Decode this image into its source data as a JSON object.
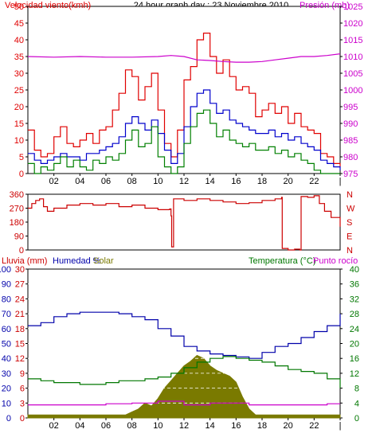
{
  "title": "24 hour graph day : 23 Noviembre 2010",
  "colors": {
    "wind": "#e00000",
    "gust": "#e00000",
    "wind_avg": "#0000cc",
    "wind_low": "#008000",
    "pressure": "#cc00cc",
    "direction": "#cc0000",
    "humidity": "#0000aa",
    "temperature": "#007700",
    "dewpoint": "#cc00cc",
    "solar": "#7a7a00",
    "rain": "#cc0000",
    "grid": "#ffffff",
    "plot_bg": "#ffffff"
  },
  "chart_data": [
    {
      "type": "line",
      "title": "24 hour graph day : 23 Noviembre 2010",
      "x_ticks": [
        "02",
        "04",
        "06",
        "08",
        "10",
        "12",
        "14",
        "16",
        "18",
        "20",
        "22",
        "|"
      ],
      "x_range_hours": [
        0,
        24
      ],
      "left_axis": {
        "label": "Velocidad viento(kmh)",
        "range": [
          0,
          50
        ],
        "ticks": [
          "0",
          "5",
          "10",
          "15",
          "20",
          "25",
          "30",
          "35",
          "40",
          "45",
          "50"
        ]
      },
      "right_axis": {
        "label": "Presión (mb)",
        "range": [
          975,
          1025
        ],
        "ticks": [
          "975",
          "980",
          "985",
          "990",
          "995",
          "1000",
          "1005",
          "1010",
          "1015",
          "1020",
          "1025"
        ]
      },
      "series": [
        {
          "key": "gust",
          "axis": "left",
          "x": [
            0,
            0.5,
            1,
            1.5,
            2,
            2.5,
            3,
            3.5,
            4,
            4.5,
            5,
            5.5,
            6,
            6.5,
            7,
            7.5,
            8,
            8.5,
            9,
            9.5,
            10,
            10.5,
            11,
            11.5,
            12,
            12.5,
            13,
            13.5,
            14,
            14.5,
            15,
            15.5,
            16,
            16.5,
            17,
            17.5,
            18,
            18.5,
            19,
            19.5,
            20,
            20.5,
            21,
            21.5,
            22,
            22.5,
            23,
            23.5,
            24
          ],
          "values": [
            13,
            7,
            5,
            6,
            11,
            14,
            9,
            8,
            10,
            12,
            9,
            13,
            14,
            19,
            24,
            31,
            29,
            22,
            26,
            30,
            19,
            9,
            5,
            13,
            28,
            32,
            40,
            42,
            35,
            30,
            34,
            29,
            25,
            26,
            24,
            17,
            19,
            21,
            18,
            20,
            15,
            18,
            14,
            13,
            12,
            6,
            5,
            3,
            2
          ]
        },
        {
          "key": "wind_avg",
          "axis": "left",
          "x": [
            0,
            0.5,
            1,
            1.5,
            2,
            2.5,
            3,
            3.5,
            4,
            4.5,
            5,
            5.5,
            6,
            6.5,
            7,
            7.5,
            8,
            8.5,
            9,
            9.5,
            10,
            10.5,
            11,
            11.5,
            12,
            12.5,
            13,
            13.5,
            14,
            14.5,
            15,
            15.5,
            16,
            16.5,
            17,
            17.5,
            18,
            18.5,
            19,
            19.5,
            20,
            20.5,
            21,
            21.5,
            22,
            22.5,
            23,
            23.5,
            24
          ],
          "values": [
            6,
            4,
            3,
            4,
            5,
            6,
            5,
            5,
            4,
            6,
            6,
            7,
            8,
            9,
            11,
            15,
            17,
            15,
            13,
            16,
            12,
            7,
            3,
            6,
            14,
            20,
            24,
            25,
            21,
            18,
            19,
            16,
            15,
            14,
            13,
            12,
            12,
            13,
            11,
            12,
            10,
            11,
            9,
            8,
            7,
            4,
            3,
            2,
            1
          ]
        },
        {
          "key": "wind_low",
          "axis": "left",
          "x": [
            0,
            0.5,
            1,
            1.5,
            2,
            2.5,
            3,
            3.5,
            4,
            4.5,
            5,
            5.5,
            6,
            6.5,
            7,
            7.5,
            8,
            8.5,
            9,
            9.5,
            10,
            10.5,
            11,
            11.5,
            12,
            12.5,
            13,
            13.5,
            14,
            14.5,
            15,
            15.5,
            16,
            16.5,
            17,
            17.5,
            18,
            18.5,
            19,
            19.5,
            20,
            20.5,
            21,
            21.5,
            22,
            22.5,
            23,
            23.5,
            24
          ],
          "values": [
            3,
            0,
            2,
            1,
            3,
            5,
            2,
            4,
            2,
            1,
            4,
            3,
            5,
            4,
            6,
            10,
            13,
            8,
            9,
            14,
            5,
            2,
            0,
            2,
            9,
            14,
            18,
            19,
            15,
            11,
            13,
            10,
            9,
            8,
            9,
            7,
            7,
            8,
            6,
            7,
            5,
            6,
            4,
            3,
            1,
            0,
            0,
            0,
            0
          ]
        },
        {
          "key": "pressure",
          "axis": "right",
          "x": [
            0,
            2,
            4,
            6,
            8,
            10,
            11,
            12,
            13,
            14,
            15,
            16,
            17,
            18,
            19,
            20,
            21,
            22,
            23,
            24
          ],
          "values": [
            1010,
            1009.8,
            1010,
            1009.8,
            1009.8,
            1010,
            1010.3,
            1010,
            1009,
            1008.8,
            1008.5,
            1008.3,
            1008.3,
            1008.5,
            1009,
            1009.5,
            1010,
            1010,
            1010.3,
            1010.8
          ]
        }
      ]
    },
    {
      "type": "line",
      "left_axis": {
        "label": "",
        "range": [
          0,
          360
        ],
        "ticks": [
          "0",
          "90",
          "180",
          "270",
          "360"
        ]
      },
      "right_axis": {
        "label": "",
        "ticks": [
          "N",
          "E",
          "S",
          "W",
          "N"
        ]
      },
      "series": [
        {
          "key": "direction",
          "axis": "left",
          "x": [
            0,
            0.3,
            0.6,
            0.9,
            1.2,
            1.5,
            2,
            3,
            4,
            5,
            6,
            7,
            8,
            9,
            10,
            10.9,
            11.0,
            11.05,
            11.2,
            12,
            13,
            14,
            15,
            16,
            17,
            18,
            19,
            19.5,
            19.55,
            20,
            20.5,
            20.9,
            21.0,
            21.5,
            22,
            22.4,
            22.8,
            23.3,
            24
          ],
          "values": [
            270,
            300,
            320,
            330,
            280,
            250,
            270,
            290,
            300,
            290,
            300,
            280,
            290,
            270,
            260,
            265,
            220,
            20,
            330,
            320,
            330,
            320,
            310,
            300,
            305,
            320,
            330,
            340,
            10,
            0,
            5,
            0,
            345,
            340,
            350,
            300,
            250,
            210,
            150
          ]
        }
      ]
    },
    {
      "type": "line",
      "x_ticks": [
        "02",
        "04",
        "06",
        "08",
        "10",
        "12",
        "14",
        "16",
        "18",
        "20",
        "22",
        "|"
      ],
      "x_range_hours": [
        0,
        24
      ],
      "labels_top": [
        "Lluvia (mm)",
        "Humedad %",
        "Solar",
        "Temperatura (°C)",
        "Punto rocío"
      ],
      "left_axis_1": {
        "label": "Lluvia (mm)",
        "range": [
          0,
          100
        ],
        "ticks": [
          "0",
          "10",
          "20",
          "30",
          "40",
          "50",
          "60",
          "70",
          "80",
          "90",
          "100"
        ]
      },
      "left_axis_2": {
        "label": "Humedad %",
        "range": [
          0,
          30
        ],
        "ticks": [
          "0",
          "3",
          "6",
          "9",
          "12",
          "15",
          "18",
          "21",
          "24",
          "27",
          "30"
        ]
      },
      "right_axis": {
        "label": "Temperatura (°C)",
        "range": [
          0,
          40
        ],
        "ticks": [
          "0",
          "4",
          "8",
          "12",
          "16",
          "20",
          "24",
          "28",
          "32",
          "36",
          "40"
        ]
      },
      "series": [
        {
          "key": "humidity",
          "axis": "left_1",
          "x": [
            0,
            1,
            2,
            3,
            4,
            5,
            6,
            7,
            8,
            9,
            10,
            11,
            12,
            13,
            14,
            15,
            16,
            17,
            18,
            19,
            20,
            21,
            22,
            23,
            24
          ],
          "values": [
            62,
            64,
            68,
            70,
            71,
            71,
            71,
            70,
            68,
            66,
            60,
            55,
            48,
            45,
            43,
            42,
            41,
            40,
            44,
            48,
            50,
            54,
            58,
            62,
            70
          ]
        },
        {
          "key": "temperature",
          "axis": "right",
          "x": [
            0,
            1,
            2,
            3,
            4,
            5,
            6,
            7,
            8,
            9,
            10,
            11,
            12,
            13,
            14,
            15,
            16,
            17,
            18,
            19,
            20,
            21,
            22,
            23,
            24
          ],
          "values": [
            10.5,
            10,
            9.5,
            9.5,
            9,
            9,
            9.5,
            10,
            10,
            10.5,
            11,
            12,
            13.5,
            15,
            16,
            16.5,
            16,
            15.5,
            15,
            14,
            13,
            12.5,
            12,
            10.5,
            8
          ]
        },
        {
          "key": "dewpoint",
          "axis": "right",
          "x": [
            0,
            1,
            2,
            3,
            4,
            5,
            6,
            7,
            8,
            9,
            10,
            11,
            12,
            13,
            14,
            15,
            16,
            17,
            18,
            19,
            20,
            21,
            22,
            23,
            24
          ],
          "values": [
            3.5,
            3.5,
            3.5,
            3.5,
            3.5,
            3.5,
            3.8,
            3.8,
            4,
            4,
            4.5,
            4.5,
            3.5,
            3.5,
            4,
            4,
            4,
            3.5,
            3.5,
            3.5,
            3.5,
            3.5,
            3.5,
            3.8,
            3.8
          ]
        },
        {
          "key": "solar",
          "axis": "left_1",
          "x": [
            0,
            7.5,
            8,
            8.5,
            9,
            9.5,
            10,
            10.5,
            11,
            11.5,
            12,
            12.5,
            13,
            13.5,
            14,
            14.5,
            15,
            15.5,
            16,
            16.5,
            17,
            17.5,
            24
          ],
          "values": [
            2,
            2,
            4,
            6,
            10,
            8,
            13,
            20,
            25,
            30,
            35,
            38,
            42,
            40,
            35,
            32,
            30,
            28,
            24,
            14,
            6,
            2,
            2
          ]
        }
      ]
    }
  ]
}
